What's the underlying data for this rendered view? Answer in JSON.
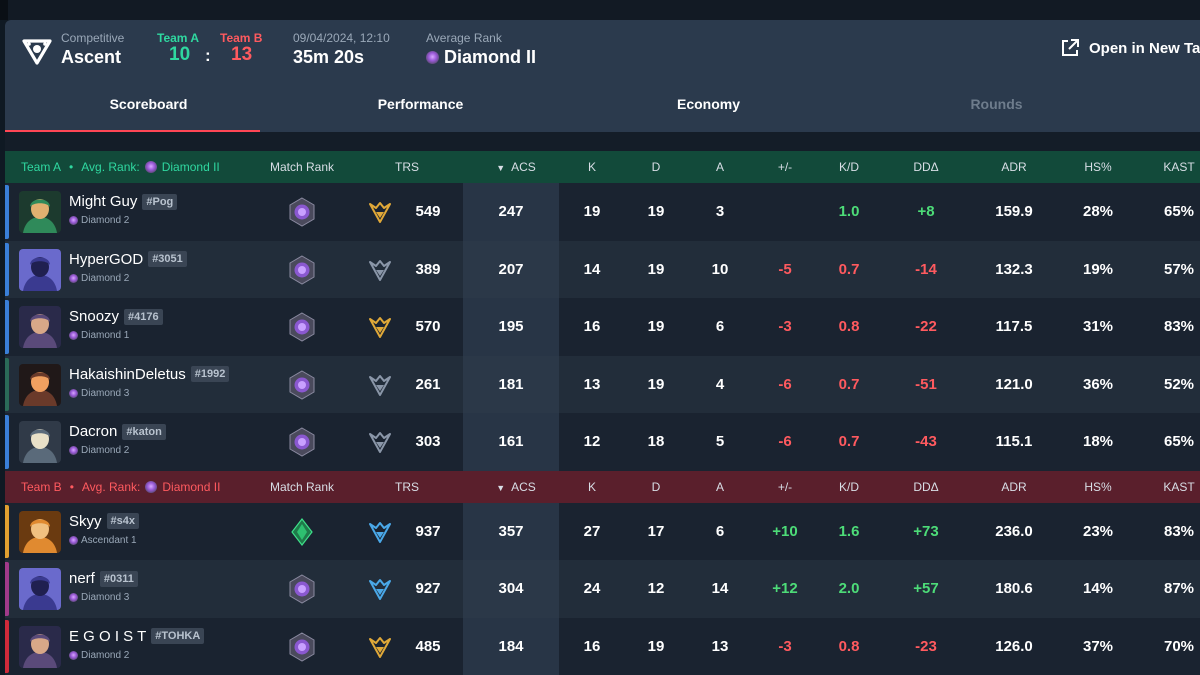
{
  "header": {
    "mode_label": "Competitive",
    "map": "Ascent",
    "team_a_label": "Team A",
    "team_b_label": "Team B",
    "team_a_score": "10",
    "team_b_score": "13",
    "score_sep": ":",
    "datetime": "09/04/2024, 12:10",
    "duration": "35m 20s",
    "avg_rank_label": "Average Rank",
    "avg_rank": "Diamond II",
    "open_new_tab": "Open in New Tab"
  },
  "tabs": [
    {
      "label": "Scoreboard",
      "active": true
    },
    {
      "label": "Performance"
    },
    {
      "label": "Economy"
    },
    {
      "label": "Rounds",
      "disabled": true
    }
  ],
  "columns": {
    "match_rank": "Match Rank",
    "trs": "TRS",
    "acs": "ACS",
    "k": "K",
    "d": "D",
    "a": "A",
    "pm": "+/-",
    "kd": "K/D",
    "dd": "DDΔ",
    "adr": "ADR",
    "hs": "HS%",
    "kast": "KAST"
  },
  "team_a": {
    "name": "Team A",
    "avg_rank_label": "Avg. Rank:",
    "avg_rank": "Diamond II",
    "color": "#2fd8a0",
    "players": [
      {
        "name": "Might Guy",
        "tag": "#Pog",
        "rank": "Diamond 2",
        "trs": "549",
        "acs": "247",
        "k": "19",
        "d": "19",
        "a": "3",
        "pm": "",
        "kd": "1.0",
        "dd": "+8",
        "adr": "159.9",
        "hs": "28%",
        "kast": "65%"
      },
      {
        "name": "HyperGOD",
        "tag": "#3051",
        "rank": "Diamond 2",
        "trs": "389",
        "acs": "207",
        "k": "14",
        "d": "19",
        "a": "10",
        "pm": "-5",
        "kd": "0.7",
        "dd": "-14",
        "adr": "132.3",
        "hs": "19%",
        "kast": "57%"
      },
      {
        "name": "Snoozy",
        "tag": "#4176",
        "rank": "Diamond 1",
        "trs": "570",
        "acs": "195",
        "k": "16",
        "d": "19",
        "a": "6",
        "pm": "-3",
        "kd": "0.8",
        "dd": "-22",
        "adr": "117.5",
        "hs": "31%",
        "kast": "83%"
      },
      {
        "name": "HakaishinDeletus",
        "tag": "#1992",
        "rank": "Diamond 3",
        "trs": "261",
        "acs": "181",
        "k": "13",
        "d": "19",
        "a": "4",
        "pm": "-6",
        "kd": "0.7",
        "dd": "-51",
        "adr": "121.0",
        "hs": "36%",
        "kast": "52%"
      },
      {
        "name": "Dacron",
        "tag": "#katon",
        "rank": "Diamond 2",
        "trs": "303",
        "acs": "161",
        "k": "12",
        "d": "18",
        "a": "5",
        "pm": "-6",
        "kd": "0.7",
        "dd": "-43",
        "adr": "115.1",
        "hs": "18%",
        "kast": "65%"
      }
    ]
  },
  "team_b": {
    "name": "Team B",
    "avg_rank_label": "Avg. Rank:",
    "avg_rank": "Diamond II",
    "color": "#ff5a5f",
    "players": [
      {
        "name": "Skyy",
        "tag": "#s4x",
        "rank": "Ascendant 1",
        "trs": "937",
        "acs": "357",
        "k": "27",
        "d": "17",
        "a": "6",
        "pm": "+10",
        "kd": "1.6",
        "dd": "+73",
        "adr": "236.0",
        "hs": "23%",
        "kast": "83%"
      },
      {
        "name": "nerf",
        "tag": "#0311",
        "rank": "Diamond 3",
        "trs": "927",
        "acs": "304",
        "k": "24",
        "d": "12",
        "a": "14",
        "pm": "+12",
        "kd": "2.0",
        "dd": "+57",
        "adr": "180.6",
        "hs": "14%",
        "kast": "87%"
      },
      {
        "name": "E G O I S T",
        "tag": "#TOHKA",
        "rank": "Diamond 2",
        "trs": "485",
        "acs": "184",
        "k": "16",
        "d": "19",
        "a": "13",
        "pm": "-3",
        "kd": "0.8",
        "dd": "-23",
        "adr": "126.0",
        "hs": "37%",
        "kast": "70%"
      }
    ]
  }
}
